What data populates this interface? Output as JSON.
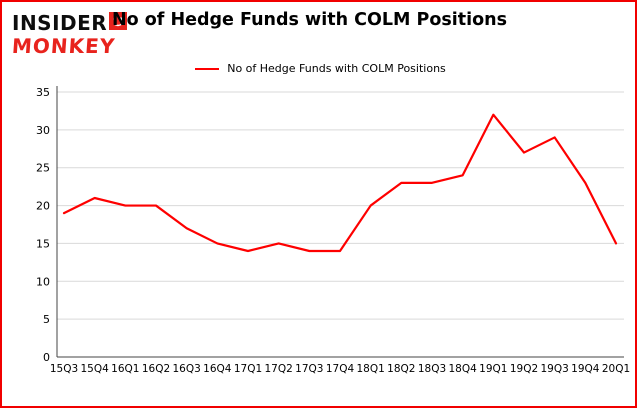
{
  "brand": {
    "line1": "INSIDER",
    "line2": "MONKEY"
  },
  "header": {
    "title": "No of Hedge Funds with COLM Positions"
  },
  "legend": {
    "label": "No of Hedge Funds with COLM Positions"
  },
  "colors": {
    "border": "#f10000",
    "brand_red": "#e8231d",
    "line": "#fe0000",
    "grid": "#d9d9d9",
    "axis": "#444444"
  },
  "chart_data": {
    "type": "line",
    "title": "No of Hedge Funds with COLM Positions",
    "categories": [
      "15Q3",
      "15Q4",
      "16Q1",
      "16Q2",
      "16Q3",
      "16Q4",
      "17Q1",
      "17Q2",
      "17Q3",
      "17Q4",
      "18Q1",
      "18Q2",
      "18Q3",
      "18Q4",
      "19Q1",
      "19Q2",
      "19Q3",
      "19Q4",
      "20Q1"
    ],
    "values": [
      19,
      21,
      20,
      20,
      17,
      15,
      14,
      15,
      14,
      14,
      20,
      23,
      23,
      24,
      32,
      27,
      29,
      23,
      15
    ],
    "xlabel": "",
    "ylabel": "",
    "ylim": [
      0,
      35
    ],
    "yticks": [
      0,
      5,
      10,
      15,
      20,
      25,
      30,
      35
    ],
    "line_color": "#fe0000",
    "grid": true,
    "legend_position": "top-center"
  }
}
